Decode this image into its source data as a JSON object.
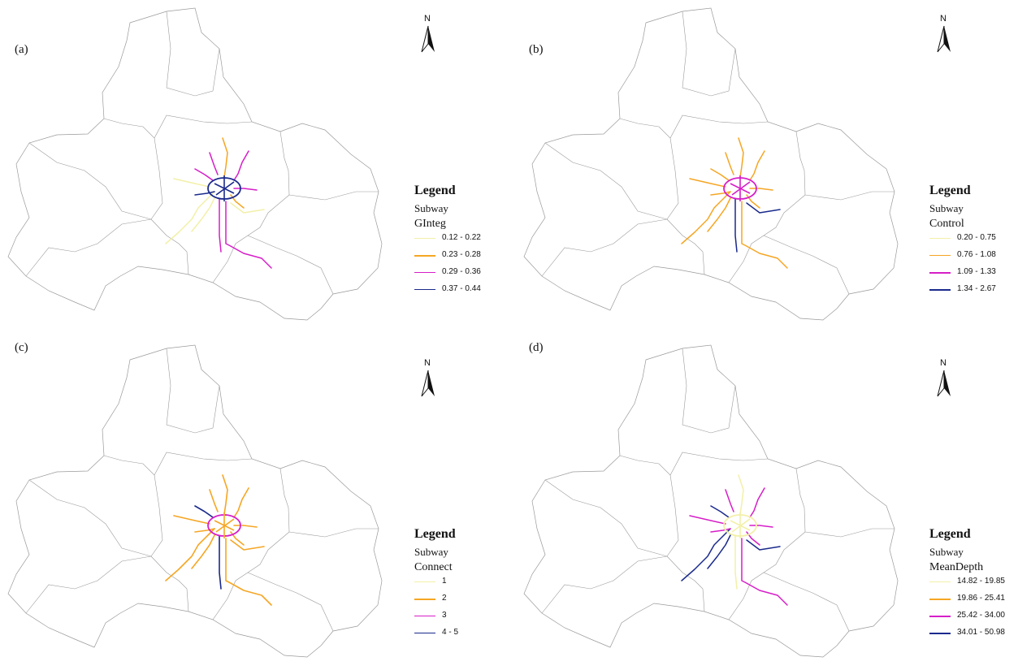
{
  "figure": {
    "layer_name": "Subway",
    "legend_title": "Legend",
    "colors": {
      "class1": "#f2f0a8",
      "class2": "#f5a623",
      "class3": "#d61ec8",
      "class4": "#1a2a8c",
      "boundary": "#9a9a9a"
    },
    "panels": [
      {
        "label": "(a)",
        "north_label": "N",
        "field": "GInteg",
        "classes": [
          "0.12 - 0.22",
          "0.23 - 0.28",
          "0.29 - 0.36",
          "0.37 - 0.44"
        ],
        "north_arrow_icon": "north-arrow-icon"
      },
      {
        "label": "(b)",
        "north_label": "N",
        "field": "Control",
        "classes": [
          "0.20 - 0.75",
          "0.76 - 1.08",
          "1.09 - 1.33",
          "1.34 - 2.67"
        ],
        "north_arrow_icon": "north-arrow-icon"
      },
      {
        "label": "(c)",
        "north_label": "N",
        "field": "Connect",
        "classes": [
          "1",
          "2",
          "3",
          "4 - 5"
        ],
        "north_arrow_icon": "north-arrow-icon"
      },
      {
        "label": "(d)",
        "north_label": "N",
        "field": "MeanDepth",
        "classes": [
          "14.82 - 19.85",
          "19.86 - 25.41",
          "25.42 - 34.00",
          "34.01 - 50.98"
        ],
        "north_arrow_icon": "north-arrow-icon"
      }
    ]
  }
}
